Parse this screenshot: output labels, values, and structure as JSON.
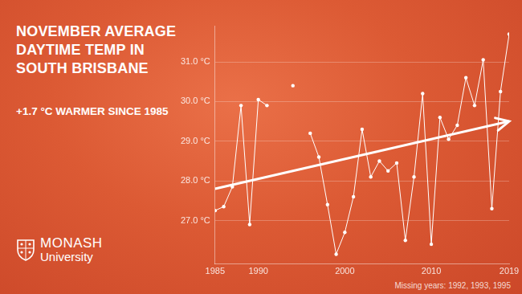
{
  "chart_data": {
    "type": "line",
    "title": "NOVEMBER AVERAGE DAYTIME TEMP IN SOUTH BRISBANE",
    "subtitle": "+1.7 °C WARMER SINCE 1985",
    "annotations": [
      "Missing years: 1992, 1993, 1995"
    ],
    "x": [
      1985,
      1986,
      1987,
      1988,
      1989,
      1990,
      1991,
      1992,
      1993,
      1994,
      1995,
      1996,
      1997,
      1998,
      1999,
      2000,
      2001,
      2002,
      2003,
      2004,
      2005,
      2006,
      2007,
      2008,
      2009,
      2010,
      2011,
      2012,
      2013,
      2014,
      2015,
      2016,
      2017,
      2018,
      2019
    ],
    "series": [
      {
        "color": "#ffffff",
        "marker": "circle",
        "line_style": "solid",
        "values": [
          27.25,
          27.35,
          27.85,
          29.9,
          26.9,
          30.05,
          29.9,
          null,
          null,
          30.4,
          null,
          29.2,
          28.6,
          27.4,
          26.15,
          26.7,
          27.6,
          29.3,
          28.1,
          28.5,
          28.25,
          28.45,
          26.5,
          28.1,
          30.2,
          26.4,
          29.6,
          29.05,
          29.4,
          30.6,
          29.9,
          31.05,
          27.3,
          30.25,
          31.7
        ]
      }
    ],
    "trend": {
      "x": [
        1985,
        2019
      ],
      "values": [
        27.8,
        29.5
      ],
      "color": "#ffffff"
    },
    "xlim": [
      1985,
      2019
    ],
    "xticks": [
      1985,
      1990,
      2000,
      2010,
      2019
    ],
    "ylim": [
      25.9,
      31.9
    ],
    "yticks": [
      {
        "value": 27,
        "label": "27.0 °C"
      },
      {
        "value": 28,
        "label": "28.0 °C"
      },
      {
        "value": 29,
        "label": "29.0 °C"
      },
      {
        "value": 30,
        "label": "30.0 °C"
      },
      {
        "value": 31,
        "label": "31.0 °C"
      }
    ],
    "grid": true
  },
  "logo": {
    "name": "MONASH",
    "subname": "University"
  }
}
